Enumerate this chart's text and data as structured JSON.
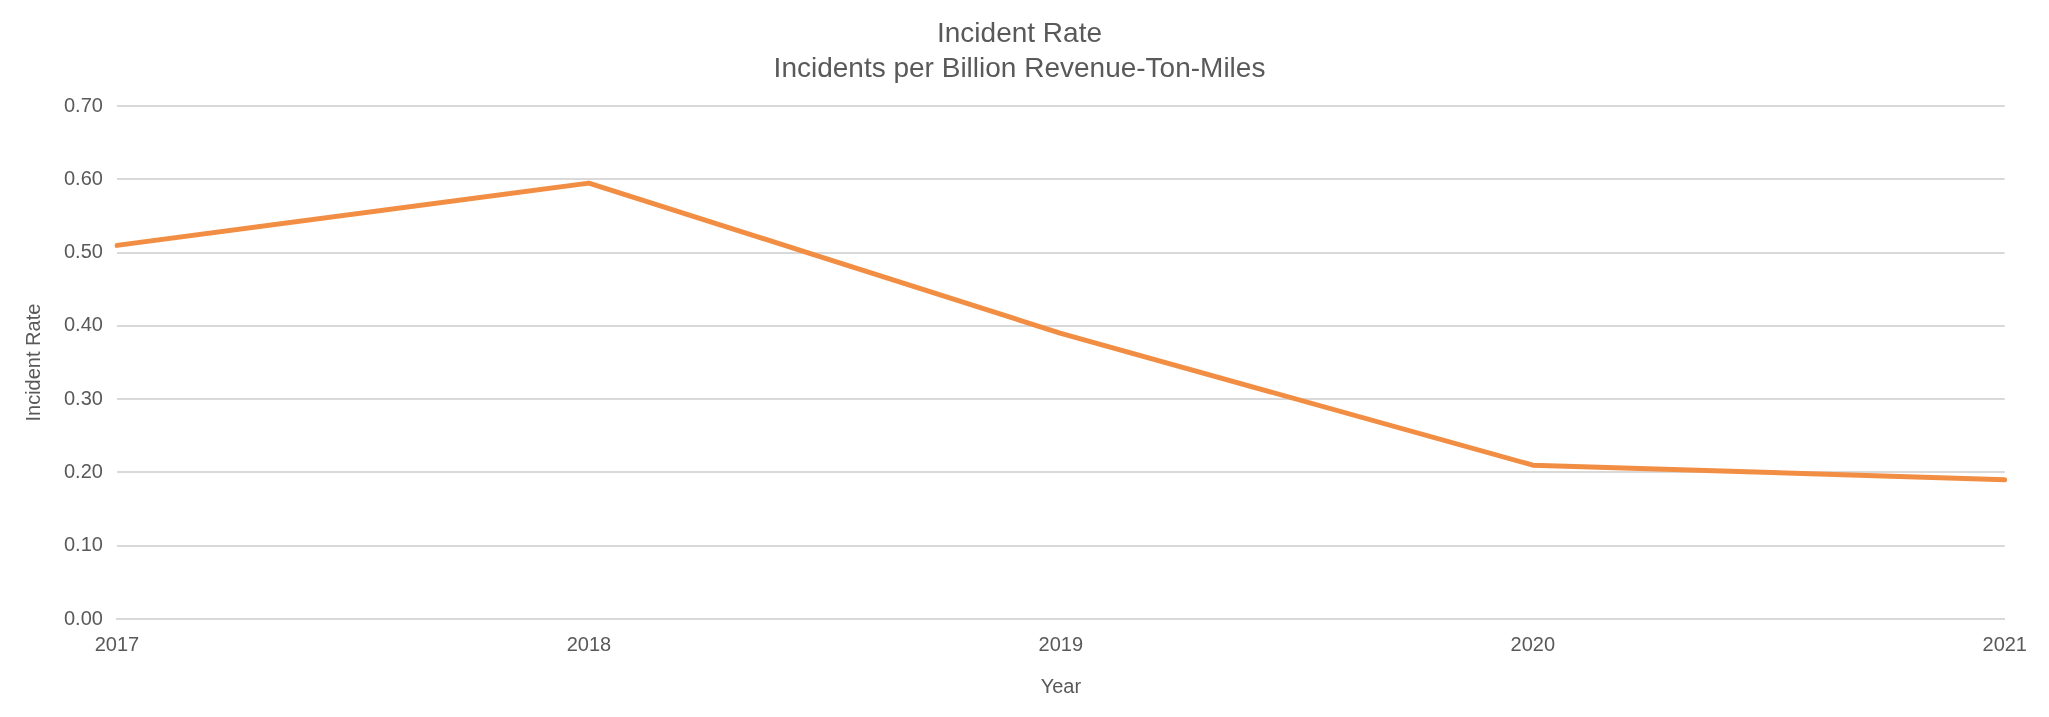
{
  "chart_data": {
    "type": "line",
    "title": "Incident Rate",
    "subtitle": "Incidents per Billion Revenue-Ton-Miles",
    "xlabel": "Year",
    "ylabel": "Incident Rate",
    "categories": [
      "2017",
      "2018",
      "2019",
      "2020",
      "2021"
    ],
    "series": [
      {
        "color": "#f28e43",
        "values": [
          0.51,
          0.595,
          0.39,
          0.21,
          0.19
        ]
      }
    ],
    "ylim": [
      0,
      0.7
    ],
    "yticks": [
      {
        "value": 0,
        "label": "0.00"
      },
      {
        "value": 0.1,
        "label": "0.10"
      },
      {
        "value": 0.2,
        "label": "0.20"
      },
      {
        "value": 0.3,
        "label": "0.30"
      },
      {
        "value": 0.4,
        "label": "0.40"
      },
      {
        "value": 0.5,
        "label": "0.50"
      },
      {
        "value": 0.6,
        "label": "0.60"
      },
      {
        "value": 0.7,
        "label": "0.70"
      }
    ],
    "grid": "y",
    "legend": false,
    "marker": "none",
    "line_style": "solid"
  }
}
